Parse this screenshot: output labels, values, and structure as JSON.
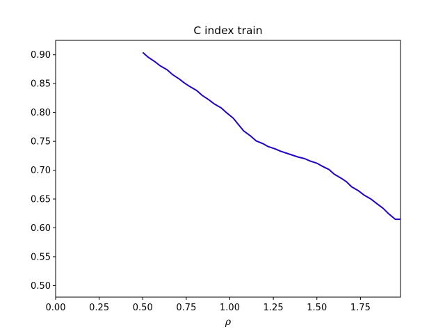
{
  "chart_data": {
    "type": "line",
    "title": "C index train",
    "xlabel": "ρ",
    "ylabel": "",
    "xlim": [
      0.0,
      1.98
    ],
    "ylim": [
      0.48,
      0.925
    ],
    "xticks": [
      "0.00",
      "0.25",
      "0.50",
      "0.75",
      "1.00",
      "1.25",
      "1.50",
      "1.75"
    ],
    "yticks": [
      "0.50",
      "0.55",
      "0.60",
      "0.65",
      "0.70",
      "0.75",
      "0.80",
      "0.85",
      "0.90"
    ],
    "grid": false,
    "legend": "none",
    "series": [
      {
        "color": "#2200cc",
        "x": [
          0.5,
          0.53,
          0.57,
          0.6,
          0.64,
          0.67,
          0.71,
          0.74,
          0.77,
          0.81,
          0.84,
          0.88,
          0.91,
          0.95,
          0.98,
          1.02,
          1.05,
          1.08,
          1.12,
          1.15,
          1.19,
          1.22,
          1.26,
          1.29,
          1.33,
          1.36,
          1.39,
          1.43,
          1.46,
          1.5,
          1.53,
          1.57,
          1.6,
          1.64,
          1.67,
          1.7,
          1.74,
          1.77,
          1.81,
          1.84,
          1.88,
          1.91,
          1.95,
          1.98
        ],
        "y": [
          0.904,
          0.896,
          0.888,
          0.881,
          0.874,
          0.866,
          0.858,
          0.851,
          0.845,
          0.838,
          0.83,
          0.822,
          0.815,
          0.808,
          0.8,
          0.79,
          0.779,
          0.768,
          0.759,
          0.751,
          0.746,
          0.741,
          0.737,
          0.733,
          0.729,
          0.726,
          0.723,
          0.72,
          0.716,
          0.712,
          0.707,
          0.701,
          0.693,
          0.686,
          0.68,
          0.671,
          0.664,
          0.657,
          0.65,
          0.643,
          0.634,
          0.625,
          0.615,
          0.615
        ]
      }
    ]
  }
}
